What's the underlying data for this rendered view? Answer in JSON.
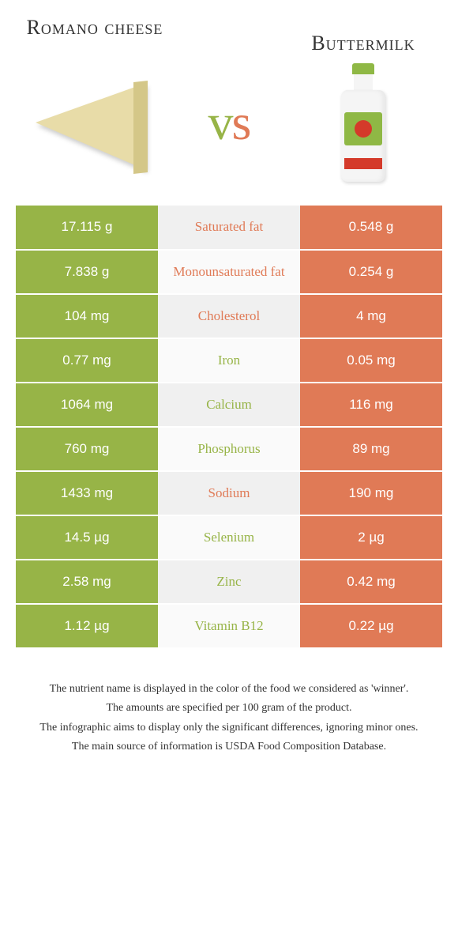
{
  "colors": {
    "left_bg": "#97b447",
    "right_bg": "#e07a56",
    "mid_bg_even": "#f0f0f0",
    "mid_bg_odd": "#fafafa",
    "left_text": "#97b447",
    "right_text": "#e07a56",
    "white": "#ffffff"
  },
  "header": {
    "left_title": "Romano cheese",
    "right_title": "Buttermilk",
    "vs": "vs"
  },
  "rows": [
    {
      "label": "Saturated fat",
      "left": "17.115 g",
      "right": "0.548 g",
      "winner": "right"
    },
    {
      "label": "Monounsaturated fat",
      "left": "7.838 g",
      "right": "0.254 g",
      "winner": "right"
    },
    {
      "label": "Cholesterol",
      "left": "104 mg",
      "right": "4 mg",
      "winner": "right"
    },
    {
      "label": "Iron",
      "left": "0.77 mg",
      "right": "0.05 mg",
      "winner": "left"
    },
    {
      "label": "Calcium",
      "left": "1064 mg",
      "right": "116 mg",
      "winner": "left"
    },
    {
      "label": "Phosphorus",
      "left": "760 mg",
      "right": "89 mg",
      "winner": "left"
    },
    {
      "label": "Sodium",
      "left": "1433 mg",
      "right": "190 mg",
      "winner": "right"
    },
    {
      "label": "Selenium",
      "left": "14.5 µg",
      "right": "2 µg",
      "winner": "left"
    },
    {
      "label": "Zinc",
      "left": "2.58 mg",
      "right": "0.42 mg",
      "winner": "left"
    },
    {
      "label": "Vitamin B12",
      "left": "1.12 µg",
      "right": "0.22 µg",
      "winner": "left"
    }
  ],
  "footer": {
    "line1": "The nutrient name is displayed in the color of the food we considered as 'winner'.",
    "line2": "The amounts are specified per 100 gram of the product.",
    "line3": "The infographic aims to display only the significant differences, ignoring minor ones.",
    "line4": "The main source of information is USDA Food Composition Database."
  }
}
